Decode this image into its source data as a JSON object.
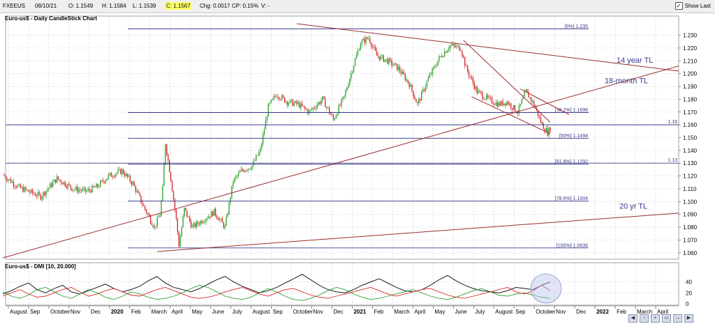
{
  "toolbar": {
    "symbol": "FXEEUS",
    "date": "08/10/21",
    "open": "O: 1.1549",
    "high": "H: 1.1584",
    "low": "L: 1.1539",
    "close": "C: 1.1567",
    "change": "Chg: 0.0017",
    "change_pct": "CP: 0.15%",
    "volume": "V: -",
    "show_last": "Show Last"
  },
  "colors": {
    "bull": "#2ca02c",
    "bear": "#d62728",
    "fib_line": "#3a3a8c",
    "trendline": "#9b2d2d",
    "dmi_adx": "#000000",
    "dmi_plus": "#2ca02c",
    "dmi_minus": "#d62728",
    "highlight": "#b8c4ec"
  },
  "chart_data": [
    {
      "type": "candlestick",
      "title": "Euro-us$ - Daily CandleStick Chart",
      "ylim": [
        1.055,
        1.245
      ],
      "yticks": [
        "1.060",
        "1.070",
        "1.080",
        "1.090",
        "1.100",
        "1.110",
        "1.120",
        "1.130",
        "1.140",
        "1.150",
        "1.160",
        "1.170",
        "1.180",
        "1.190",
        "1.200",
        "1.210",
        "1.220",
        "1.230"
      ],
      "x_labels": [
        "August",
        "Sep",
        "October",
        "Nov",
        "Dec",
        "2020",
        "Feb",
        "March",
        "April",
        "May",
        "June",
        "July",
        "August",
        "Sep",
        "October",
        "Nov",
        "Dec",
        "2021",
        "Feb",
        "March",
        "April",
        "May",
        "June",
        "July",
        "August",
        "Sep",
        "October",
        "Nov",
        "Dec",
        "2022",
        "Feb",
        "March",
        "April"
      ],
      "price_path": [
        [
          0,
          1.121
        ],
        [
          12,
          1.111
        ],
        [
          28,
          1.104
        ],
        [
          40,
          1.118
        ],
        [
          52,
          1.11
        ],
        [
          62,
          1.108
        ],
        [
          70,
          1.112
        ],
        [
          78,
          1.12
        ],
        [
          88,
          1.124
        ],
        [
          96,
          1.114
        ],
        [
          104,
          1.096
        ],
        [
          112,
          1.08
        ],
        [
          116,
          1.09
        ],
        [
          118,
          1.11
        ],
        [
          120,
          1.146
        ],
        [
          124,
          1.118
        ],
        [
          128,
          1.086
        ],
        [
          130,
          1.066
        ],
        [
          134,
          1.094
        ],
        [
          140,
          1.08
        ],
        [
          148,
          1.086
        ],
        [
          156,
          1.092
        ],
        [
          164,
          1.08
        ],
        [
          170,
          1.116
        ],
        [
          176,
          1.124
        ],
        [
          184,
          1.128
        ],
        [
          190,
          1.14
        ],
        [
          196,
          1.174
        ],
        [
          202,
          1.184
        ],
        [
          210,
          1.178
        ],
        [
          218,
          1.176
        ],
        [
          226,
          1.17
        ],
        [
          236,
          1.18
        ],
        [
          244,
          1.164
        ],
        [
          252,
          1.182
        ],
        [
          258,
          1.204
        ],
        [
          264,
          1.224
        ],
        [
          270,
          1.228
        ],
        [
          276,
          1.214
        ],
        [
          284,
          1.21
        ],
        [
          292,
          1.204
        ],
        [
          300,
          1.192
        ],
        [
          306,
          1.176
        ],
        [
          314,
          1.196
        ],
        [
          322,
          1.212
        ],
        [
          330,
          1.222
        ],
        [
          338,
          1.22
        ],
        [
          342,
          1.204
        ],
        [
          350,
          1.186
        ],
        [
          358,
          1.18
        ],
        [
          366,
          1.176
        ],
        [
          372,
          1.178
        ],
        [
          380,
          1.17
        ],
        [
          386,
          1.186
        ],
        [
          392,
          1.176
        ],
        [
          398,
          1.16
        ],
        [
          402,
          1.154
        ],
        [
          404,
          1.157
        ]
      ],
      "fib_levels": [
        {
          "label": "[0%] 1.235",
          "value": 1.235
        },
        {
          "label": "[38.2%] 1.1696",
          "value": 1.1696
        },
        {
          "label": "[50%] 1.1494",
          "value": 1.1494
        },
        {
          "label": "[61.8%] 1.1292",
          "value": 1.1292
        },
        {
          "label": "[78.6%] 1.1004",
          "value": 1.1004
        },
        {
          "label": "[100%] 1.0638",
          "value": 1.0638
        }
      ],
      "horizontal_levels": [
        {
          "label": "1.16",
          "value": 1.16
        },
        {
          "label": "1.13",
          "value": 1.13
        }
      ],
      "trendline_annotations": [
        "14 year TL",
        "18-month TL",
        "20 yr TL"
      ]
    },
    {
      "type": "line",
      "title": "Euro-us$ - DMI [10, 20.000]",
      "ylim": [
        0,
        60
      ],
      "yticks": [
        "0",
        "20",
        "40"
      ],
      "series": [
        {
          "color_key": "dmi_adx",
          "values": [
            18,
            24,
            32,
            38,
            26,
            20,
            28,
            34,
            22,
            18,
            24,
            30,
            36,
            28,
            22,
            26,
            32,
            42,
            50,
            38,
            30,
            26,
            22,
            28,
            36,
            44,
            50,
            40,
            32,
            26,
            20,
            24,
            30,
            38,
            46,
            54,
            44,
            34,
            26,
            22,
            20,
            26,
            34,
            40,
            46,
            38,
            30,
            24,
            22,
            26,
            34,
            44,
            52,
            42,
            34,
            28,
            24,
            22,
            20,
            24,
            30,
            28,
            26,
            34,
            40
          ]
        },
        {
          "color_key": "dmi_plus",
          "values": [
            22,
            14,
            10,
            16,
            26,
            30,
            22,
            14,
            10,
            18,
            26,
            20,
            12,
            8,
            14,
            22,
            18,
            12,
            8,
            10,
            14,
            20,
            28,
            34,
            30,
            22,
            14,
            10,
            8,
            12,
            20,
            28,
            22,
            14,
            8,
            6,
            10,
            16,
            24,
            30,
            26,
            18,
            12,
            8,
            10,
            14,
            18,
            22,
            26,
            20,
            14,
            10,
            8,
            12,
            18,
            24,
            28,
            22,
            16,
            14,
            18,
            20,
            16,
            12,
            10
          ]
        },
        {
          "color_key": "dmi_minus",
          "values": [
            14,
            20,
            26,
            18,
            12,
            14,
            20,
            26,
            30,
            22,
            14,
            18,
            24,
            28,
            22,
            16,
            14,
            20,
            26,
            30,
            24,
            18,
            12,
            10,
            12,
            16,
            22,
            26,
            30,
            24,
            18,
            14,
            20,
            26,
            28,
            22,
            16,
            12,
            10,
            14,
            18,
            22,
            26,
            30,
            24,
            18,
            14,
            18,
            22,
            26,
            28,
            22,
            16,
            12,
            10,
            14,
            18,
            22,
            26,
            30,
            22,
            18,
            24,
            34,
            24
          ]
        }
      ]
    }
  ]
}
